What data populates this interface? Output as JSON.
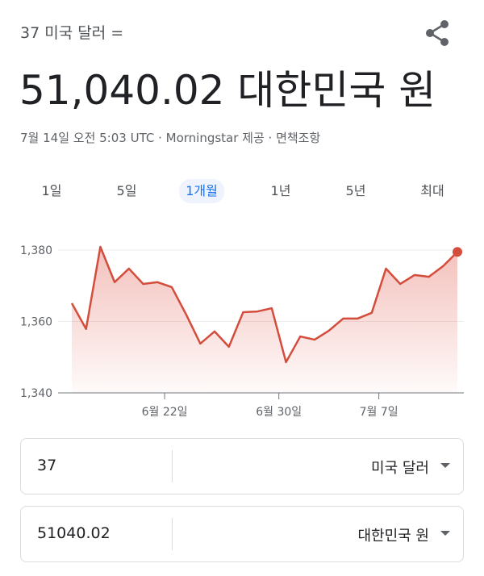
{
  "header": {
    "query": "37 미국 달러 =",
    "result": "51,040.02 대한민국 원",
    "source": "7월 14일 오전 5:03 UTC · Morningstar 제공 · 면책조항"
  },
  "tabs": [
    "1일",
    "5일",
    "1개월",
    "1년",
    "5년",
    "최대"
  ],
  "selected_tab": 2,
  "chart_data": {
    "type": "line",
    "x": [
      0,
      1,
      2,
      3,
      4,
      5,
      6,
      7,
      8,
      9,
      10,
      11,
      12,
      13,
      14,
      15,
      16,
      17,
      18,
      19,
      20,
      21,
      22,
      23,
      24,
      25,
      26,
      27
    ],
    "series": [
      {
        "name": null,
        "color": "#d44c3c",
        "values": [
          1365.1,
          1357.9,
          1380.9,
          1371,
          1374.8,
          1370.5,
          1371,
          1369.6,
          1362,
          1353.8,
          1357.2,
          1352.9,
          1362.6,
          1362.8,
          1363.7,
          1348.6,
          1355.8,
          1354.9,
          1357.4,
          1360.8,
          1360.8,
          1362.4,
          1374.8,
          1370.5,
          1373,
          1372.5,
          1375.5,
          1379.46
        ]
      }
    ],
    "xlim": [
      0,
      27
    ],
    "xticks": [
      {
        "value": 6.5,
        "label": "6월 22일"
      },
      {
        "value": 14.5,
        "label": "6월 30일"
      },
      {
        "value": 21.5,
        "label": "7월 7일"
      }
    ],
    "ylim": [
      1340,
      1384.5
    ],
    "yticks": [
      {
        "value": 1340,
        "label": "1,340"
      },
      {
        "value": 1360,
        "label": "1,360"
      },
      {
        "value": 1380,
        "label": "1,380"
      }
    ],
    "grid": true
  },
  "converter": {
    "from": {
      "amount": "37",
      "currency": "미국 달러"
    },
    "to": {
      "amount": "51040.02",
      "currency": "대한민국 원"
    }
  }
}
